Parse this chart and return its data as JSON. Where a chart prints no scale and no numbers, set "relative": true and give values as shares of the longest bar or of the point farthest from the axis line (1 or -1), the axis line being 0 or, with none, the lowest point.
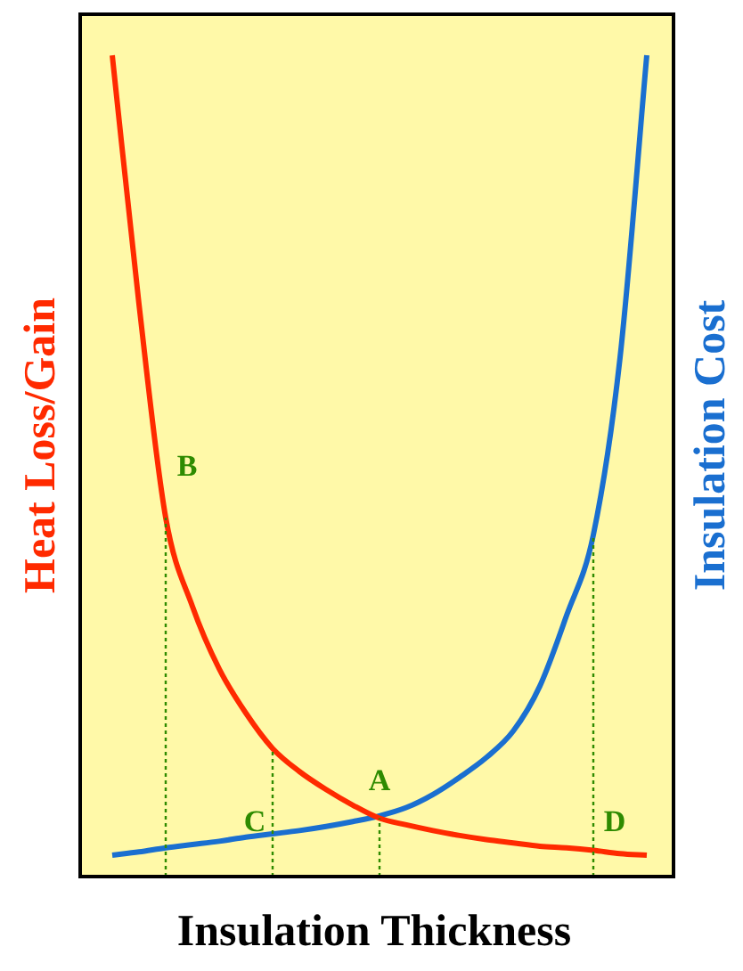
{
  "chart_data": {
    "type": "line",
    "relative": true,
    "xlabel": "Insulation Thickness",
    "ylabel": "Heat Loss/Gain",
    "y2label": "Insulation Cost",
    "marker": "none",
    "categories": [
      null,
      null,
      null,
      null,
      null,
      null,
      null,
      null,
      null,
      null,
      null,
      null,
      null,
      null,
      null,
      null,
      null,
      null,
      null,
      null,
      null
    ],
    "series": [
      {
        "color": "#ff2a00",
        "values": [
          1.0,
          0.697,
          0.437,
          0.329,
          0.253,
          0.199,
          0.156,
          0.128,
          0.106,
          0.087,
          0.071,
          0.063,
          0.056,
          0.05,
          0.045,
          0.041,
          0.037,
          0.035,
          0.032,
          0.028,
          0.026
        ]
      },
      {
        "color": "#1a6fd0",
        "values": [
          0.026,
          0.03,
          0.035,
          0.039,
          0.043,
          0.048,
          0.052,
          0.056,
          0.061,
          0.067,
          0.074,
          0.084,
          0.1,
          0.121,
          0.145,
          0.177,
          0.232,
          0.318,
          0.416,
          0.632,
          1.0
        ]
      }
    ],
    "annotations": [
      "B",
      "C",
      "A",
      "D"
    ]
  }
}
